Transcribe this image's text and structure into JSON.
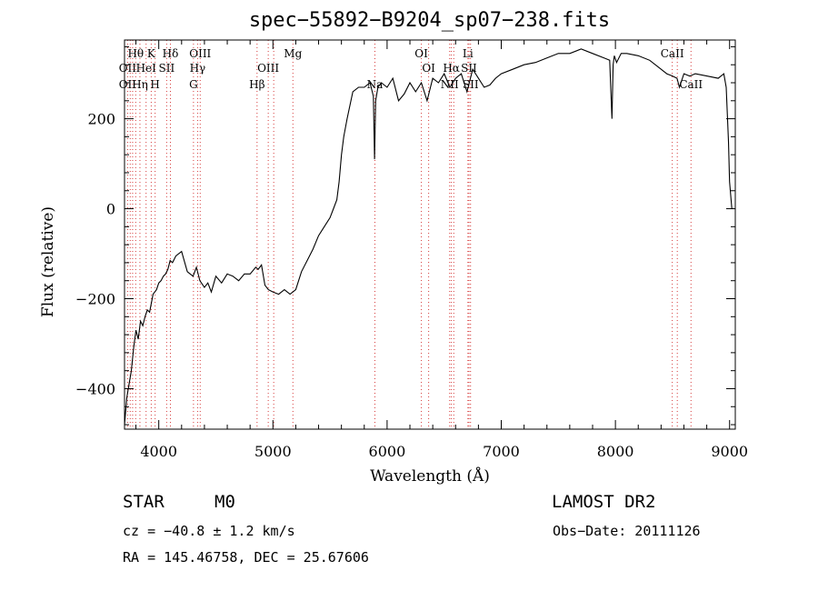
{
  "chart_data": {
    "type": "line",
    "title": "spec−55892−B9204_sp07−238.fits",
    "xlabel": "Wavelength (Å)",
    "ylabel": "Flux (relative)",
    "xlim": [
      3700,
      9050
    ],
    "ylim": [
      -490,
      375
    ],
    "xticks": [
      4000,
      5000,
      6000,
      7000,
      8000,
      9000
    ],
    "yticks": [
      -400,
      -200,
      0,
      200
    ],
    "grid": false,
    "series": [
      {
        "x": [
          3700,
          3720,
          3740,
          3760,
          3780,
          3800,
          3820,
          3840,
          3860,
          3880,
          3900,
          3920,
          3950,
          3980,
          4000,
          4020,
          4040,
          4060,
          4080,
          4100,
          4120,
          4150,
          4200,
          4250,
          4300,
          4330,
          4360,
          4400,
          4430,
          4460,
          4500,
          4550,
          4600,
          4650,
          4700,
          4750,
          4800,
          4850,
          4870,
          4900,
          4930,
          4960,
          5000,
          5050,
          5100,
          5150,
          5200,
          5250,
          5300,
          5350,
          5400,
          5450,
          5500,
          5530,
          5560,
          5580,
          5600,
          5620,
          5650,
          5700,
          5750,
          5800,
          5850,
          5880,
          5890,
          5900,
          5920,
          5950,
          6000,
          6050,
          6100,
          6150,
          6200,
          6250,
          6300,
          6350,
          6400,
          6450,
          6500,
          6550,
          6600,
          6650,
          6700,
          6750,
          6800,
          6850,
          6900,
          6950,
          7000,
          7100,
          7200,
          7300,
          7400,
          7500,
          7600,
          7700,
          7800,
          7900,
          7950,
          7970,
          7980,
          7990,
          8010,
          8050,
          8100,
          8200,
          8300,
          8400,
          8450,
          8500,
          8540,
          8560,
          8600,
          8650,
          8700,
          8800,
          8900,
          8950,
          8970,
          8990,
          9000,
          9020,
          9030
        ],
        "y": [
          -480,
          -420,
          -390,
          -360,
          -310,
          -270,
          -290,
          -250,
          -260,
          -240,
          -225,
          -230,
          -190,
          -180,
          -165,
          -160,
          -150,
          -145,
          -135,
          -115,
          -120,
          -105,
          -95,
          -140,
          -150,
          -130,
          -160,
          -175,
          -165,
          -185,
          -150,
          -165,
          -145,
          -150,
          -160,
          -145,
          -145,
          -130,
          -135,
          -125,
          -170,
          -180,
          -185,
          -190,
          -180,
          -190,
          -180,
          -140,
          -115,
          -90,
          -60,
          -40,
          -20,
          0,
          20,
          60,
          120,
          160,
          200,
          260,
          270,
          270,
          280,
          250,
          110,
          240,
          270,
          280,
          270,
          290,
          240,
          255,
          280,
          260,
          280,
          240,
          290,
          280,
          300,
          270,
          290,
          300,
          260,
          310,
          290,
          270,
          275,
          290,
          300,
          310,
          320,
          325,
          335,
          345,
          345,
          355,
          345,
          335,
          330,
          200,
          320,
          340,
          325,
          345,
          345,
          340,
          330,
          310,
          300,
          295,
          290,
          270,
          300,
          295,
          300,
          295,
          290,
          300,
          270,
          150,
          60,
          0,
          0
        ]
      }
    ],
    "spectral_lines": [
      {
        "label": "Hθ",
        "row": 1,
        "wl": 3798
      },
      {
        "label": "K",
        "row": 1,
        "wl": 3934
      },
      {
        "label": "Hδ",
        "row": 1,
        "wl": 4102
      },
      {
        "label": "OIII",
        "row": 1,
        "wl": 4363
      },
      {
        "label": "Mg",
        "row": 1,
        "wl": 5175
      },
      {
        "label": "OI",
        "row": 1,
        "wl": 6300
      },
      {
        "label": "Li",
        "row": 1,
        "wl": 6708
      },
      {
        "label": "CaII",
        "row": 1,
        "wl": 8498
      },
      {
        "label": "OII",
        "row": 2,
        "wl": 3727
      },
      {
        "label": "HeI",
        "row": 2,
        "wl": 3889
      },
      {
        "label": "SII",
        "row": 2,
        "wl": 4069
      },
      {
        "label": "Hγ",
        "row": 2,
        "wl": 4340
      },
      {
        "label": "OIII",
        "row": 2,
        "wl": 4959
      },
      {
        "label": "OI",
        "row": 2,
        "wl": 6364
      },
      {
        "label": "Hα",
        "row": 2,
        "wl": 6563
      },
      {
        "label": "SII",
        "row": 2,
        "wl": 6717
      },
      {
        "label": "OII",
        "row": 3,
        "wl": 3727
      },
      {
        "label": "Hη",
        "row": 3,
        "wl": 3835
      },
      {
        "label": "H",
        "row": 3,
        "wl": 3968
      },
      {
        "label": "G",
        "row": 3,
        "wl": 4304
      },
      {
        "label": "Hβ",
        "row": 3,
        "wl": 4861
      },
      {
        "label": "Na",
        "row": 3,
        "wl": 5893
      },
      {
        "label": "NII",
        "row": 3,
        "wl": 6548
      },
      {
        "label": "SII",
        "row": 3,
        "wl": 6731
      },
      {
        "label": "CaII",
        "row": 3,
        "wl": 8662
      }
    ],
    "extra_line_markers": [
      3750,
      3771,
      3889,
      4861,
      4959,
      5007,
      5893,
      6548,
      6584,
      6717,
      8542
    ]
  },
  "info": {
    "object_class": "STAR",
    "subclass": "M0",
    "survey": "LAMOST  DR2",
    "cz": "cz = −40.8 ± 1.2 km/s",
    "obs_date": "Obs−Date: 20111126",
    "coords": "RA = 145.46758, DEC =  25.67606"
  }
}
